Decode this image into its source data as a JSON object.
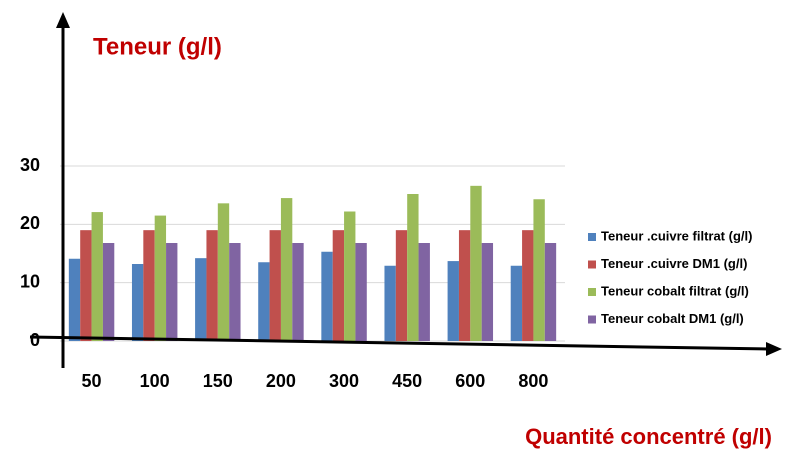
{
  "chart_data": {
    "type": "bar",
    "title": "Teneur (g/l)",
    "x_label": "Quantité concentré (g/l)",
    "categories": [
      "50",
      "100",
      "150",
      "200",
      "300",
      "450",
      "600",
      "800"
    ],
    "series": [
      {
        "name": "Teneur .cuivre filtrat (g/l)",
        "color": "#4f81bd",
        "values": [
          14.1,
          13.2,
          14.2,
          13.5,
          15.3,
          12.9,
          13.7,
          12.9
        ]
      },
      {
        "name": "Teneur .cuivre DM1 (g/l)",
        "color": "#c0504d",
        "values": [
          19,
          19,
          19,
          19,
          19,
          19,
          19,
          19
        ]
      },
      {
        "name": "Teneur cobalt filtrat (g/l)",
        "color": "#9bbb59",
        "values": [
          22.1,
          21.5,
          23.6,
          24.5,
          22.2,
          25.2,
          26.6,
          24.3
        ]
      },
      {
        "name": "Teneur cobalt DM1 (g/l)",
        "color": "#8064a2",
        "values": [
          16.8,
          16.8,
          16.8,
          16.8,
          16.8,
          16.8,
          16.8,
          16.8
        ]
      }
    ],
    "ylim": [
      0,
      30
    ],
    "yticks": [
      0,
      10,
      20,
      30
    ],
    "grid": true,
    "legend": "right"
  }
}
